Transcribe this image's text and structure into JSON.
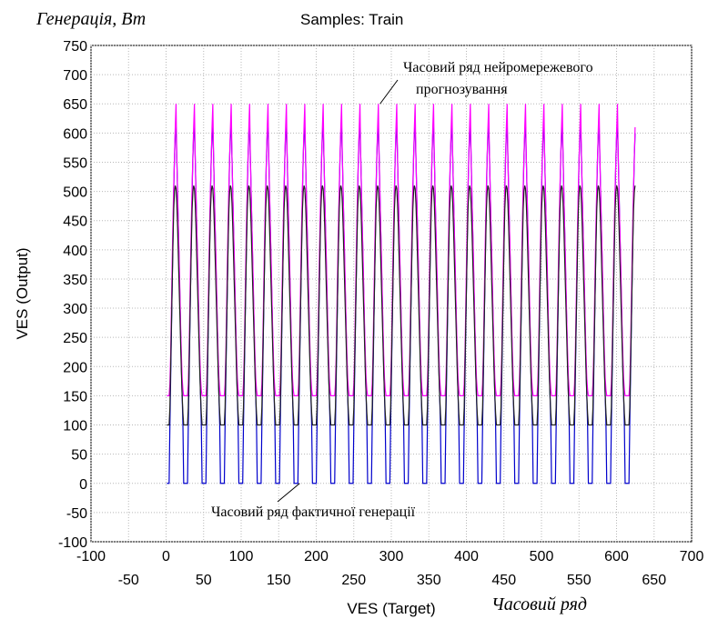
{
  "chart_data": {
    "type": "line",
    "title": "Samples: Train",
    "y_quantity_label": "Генерація, Вт",
    "x_quantity_label": "Часовий ряд",
    "xlabel": "VES (Target)",
    "ylabel": "VES (Output)",
    "xlim": [
      -100,
      700
    ],
    "ylim": [
      -100,
      750
    ],
    "x_ticks_row1": [
      "-100",
      "0",
      "100",
      "200",
      "300",
      "400",
      "500",
      "600",
      "700"
    ],
    "x_ticks_row2": [
      "-50",
      "50",
      "150",
      "250",
      "350",
      "450",
      "550",
      "650"
    ],
    "y_ticks": [
      "-100",
      "-50",
      "0",
      "50",
      "100",
      "150",
      "200",
      "250",
      "300",
      "350",
      "400",
      "450",
      "500",
      "550",
      "600",
      "650",
      "700",
      "750"
    ],
    "grid": true,
    "series": [
      {
        "color": "#0000cc",
        "cycle_length": 24.5,
        "x_start": 1,
        "x_end": 625,
        "pattern": [
          0,
          0,
          0,
          0,
          100,
          180,
          260,
          340,
          420,
          500,
          560,
          600,
          610,
          560,
          500,
          440,
          380,
          320,
          260,
          200,
          150,
          100,
          0,
          0
        ]
      },
      {
        "color": "#ff00ff",
        "cycle_length": 24.5,
        "x_start": 1,
        "x_end": 625,
        "pattern": [
          150,
          150,
          150,
          150,
          170,
          220,
          300,
          380,
          450,
          510,
          560,
          610,
          650,
          560,
          500,
          440,
          390,
          330,
          270,
          220,
          180,
          160,
          150,
          150
        ]
      },
      {
        "color": "#222222",
        "cycle_length": 24.5,
        "x_start": 1,
        "x_end": 625,
        "pattern": [
          100,
          100,
          100,
          100,
          130,
          200,
          270,
          340,
          410,
          470,
          500,
          510,
          505,
          480,
          440,
          390,
          340,
          290,
          240,
          190,
          150,
          120,
          100,
          100
        ]
      }
    ],
    "annotations": [
      {
        "text_line1": "Часовий ряд нейромережевого",
        "text_line2": "прогнозування",
        "points_to": [
          285,
          650
        ]
      },
      {
        "text": "Часовий ряд фактичної генерації",
        "points_to": [
          178,
          0
        ]
      }
    ]
  }
}
